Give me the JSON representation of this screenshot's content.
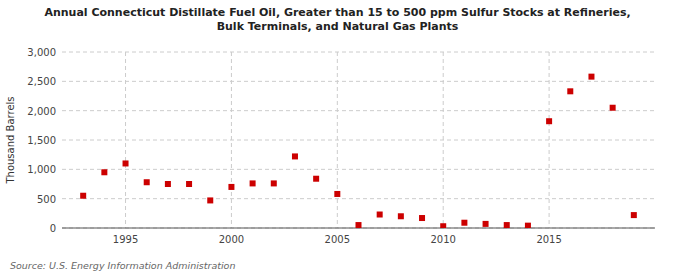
{
  "chart_data": {
    "type": "scatter",
    "title": "Annual Connecticut Distillate Fuel Oil, Greater than 15 to 500 ppm Sulfur Stocks at Refineries,\nBulk Terminals, and Natural Gas Plants",
    "ylabel": "Thousand Barrels",
    "annotations": [
      "Source: U.S. Energy Information Administration"
    ],
    "x": [
      1993,
      1994,
      1995,
      1996,
      1997,
      1998,
      1999,
      2000,
      2001,
      2002,
      2003,
      2004,
      2005,
      2006,
      2007,
      2008,
      2009,
      2010,
      2011,
      2012,
      2013,
      2014,
      2015,
      2016,
      2017,
      2018,
      2019
    ],
    "values": [
      550,
      950,
      1100,
      780,
      750,
      750,
      470,
      700,
      760,
      760,
      1220,
      840,
      580,
      50,
      230,
      200,
      170,
      30,
      90,
      70,
      50,
      40,
      1820,
      2330,
      2580,
      2050,
      220
    ],
    "color": "#cc0000",
    "marker": "square",
    "xlim": [
      1992,
      2020
    ],
    "ylim": [
      0,
      3000
    ],
    "xticks": [
      1995,
      2000,
      2005,
      2010,
      2015
    ],
    "yticks": [
      0,
      500,
      {
        "value": 1000,
        "label": "1,000"
      },
      {
        "value": 1500,
        "label": "1,500"
      },
      {
        "value": 2000,
        "label": "2,000"
      },
      {
        "value": 2500,
        "label": "2,500"
      },
      {
        "value": 3000,
        "label": "3,000"
      }
    ],
    "grid": true
  }
}
